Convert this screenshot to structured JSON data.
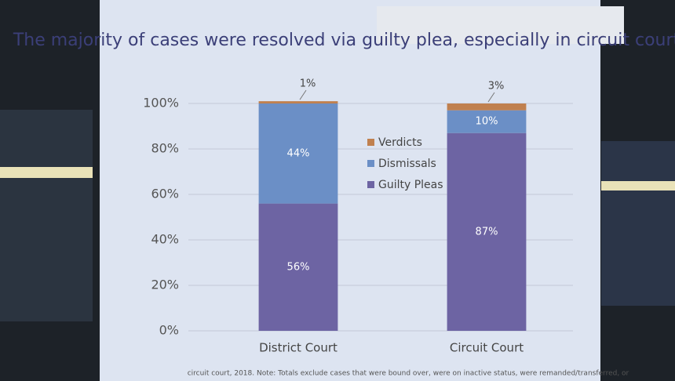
{
  "chart_data": {
    "type": "stacked_bar",
    "title": "The majority of cases were resolved via guilty plea, especially in circuit court.",
    "categories": [
      "District Court",
      "Circuit Court"
    ],
    "series": [
      {
        "name": "Guilty Pleas",
        "color": "#6d64a3",
        "values": [
          56,
          87
        ],
        "value_labels": [
          "56%",
          "87%"
        ]
      },
      {
        "name": "Dismissals",
        "color": "#6b8fc6",
        "values": [
          44,
          10
        ],
        "value_labels": [
          "44%",
          "10%"
        ]
      },
      {
        "name": "Verdicts",
        "color": "#c0804f",
        "values": [
          1,
          3
        ],
        "value_labels": [
          "1%",
          "3%"
        ]
      }
    ],
    "ylim": [
      0,
      100
    ],
    "yticks": [
      {
        "value": 0,
        "label": "0%"
      },
      {
        "value": 20,
        "label": "20%"
      },
      {
        "value": 40,
        "label": "40%"
      },
      {
        "value": 60,
        "label": "60%"
      },
      {
        "value": 80,
        "label": "80%"
      },
      {
        "value": 100,
        "label": "100%"
      }
    ],
    "grid": true,
    "note": "circuit court, 2018. Note: Totals exclude cases that were bound over, were on inactive status, were remanded/transferred, or"
  }
}
